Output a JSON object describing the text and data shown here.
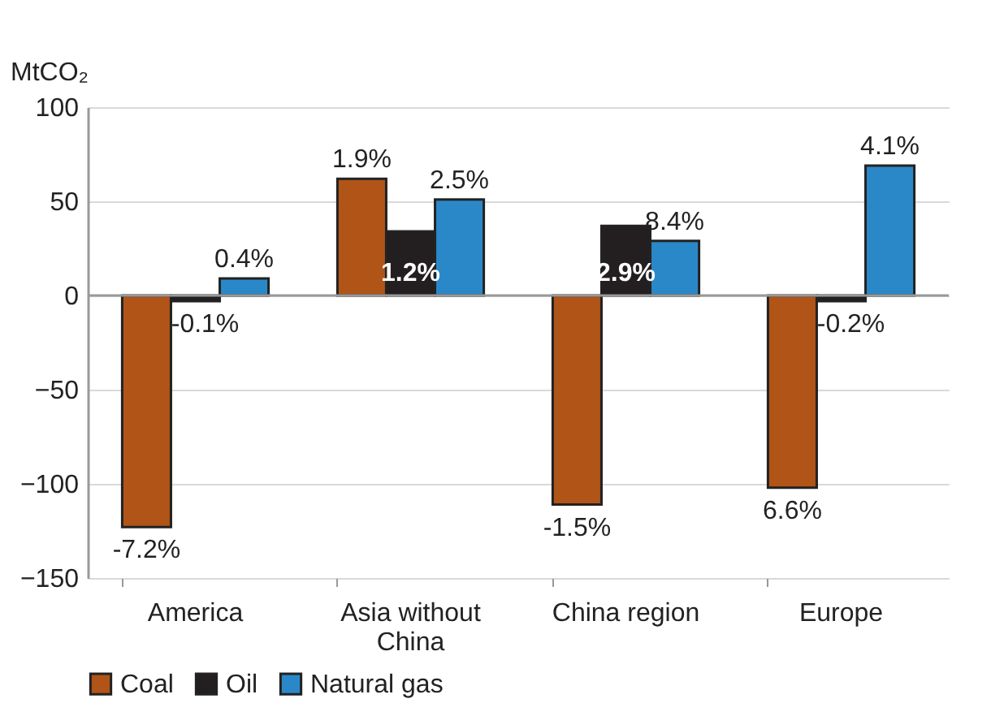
{
  "chart_data": {
    "type": "bar",
    "ylabel": "MtCO₂",
    "categories": [
      "America",
      "Asia without China",
      "China region",
      "Europe"
    ],
    "series": [
      {
        "name": "Coal",
        "color": "#b05418",
        "values": [
          -123,
          62,
          -111,
          -102
        ]
      },
      {
        "name": "Oil",
        "color": "#231f20",
        "values": [
          -3,
          34,
          37,
          -3
        ]
      },
      {
        "name": "Natural gas",
        "color": "#2b88c8",
        "values": [
          9,
          51,
          29,
          69
        ]
      }
    ],
    "annotations": [
      "-7.2%",
      "1.9%",
      "-1.5%",
      "6.6%",
      "-0.1%",
      "1.2%",
      "2.9%",
      "-0.2%",
      "0.4%",
      "2.5%",
      "8.4%",
      "4.1%"
    ],
    "ylim": [
      -150,
      100
    ],
    "yticks": [
      -150,
      -100,
      -50,
      0,
      50,
      100
    ],
    "grid": "y",
    "legend": "bottom"
  }
}
